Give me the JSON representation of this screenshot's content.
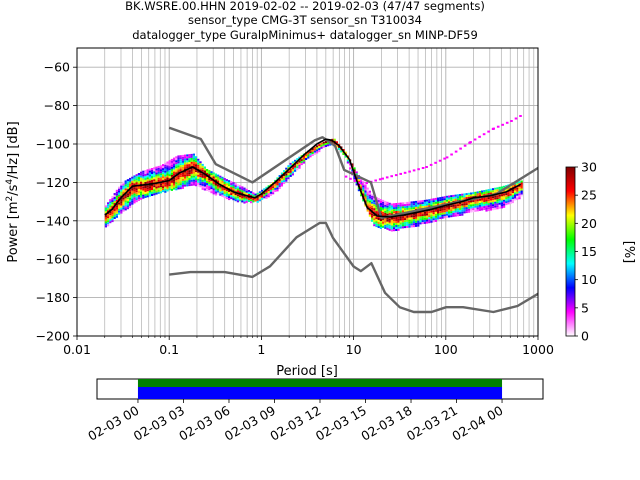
{
  "chart_data": {
    "type": "heatmap",
    "title_lines": [
      "BK.WSRE.00.HHN   2019-02-02 -- 2019-02-03  (47/47 segments)",
      "sensor_type CMG-3T sensor_sn T310034",
      "datalogger_type GuralpMinimus+ datalogger_sn MINP-DF59"
    ],
    "xlabel": "Period [s]",
    "ylabel_parts": {
      "pre": "Power [m",
      "sup1": "2",
      "mid": "/s",
      "sup2": "4",
      "post": "/Hz] [dB]"
    },
    "x_scale": "log",
    "xlim": [
      0.01,
      1000
    ],
    "ylim": [
      -200,
      -50
    ],
    "x_ticks": [
      {
        "value": 0.01,
        "label": "0.01"
      },
      {
        "value": 0.1,
        "label": "0.1"
      },
      {
        "value": 1,
        "label": "1"
      },
      {
        "value": 10,
        "label": "10"
      },
      {
        "value": 100,
        "label": "100"
      },
      {
        "value": 1000,
        "label": "1000"
      }
    ],
    "y_ticks": [
      {
        "value": -60,
        "label": "−60"
      },
      {
        "value": -80,
        "label": "−80"
      },
      {
        "value": -100,
        "label": "−100"
      },
      {
        "value": -120,
        "label": "−120"
      },
      {
        "value": -140,
        "label": "−140"
      },
      {
        "value": -160,
        "label": "−160"
      },
      {
        "value": -180,
        "label": "−180"
      },
      {
        "value": -200,
        "label": "−200"
      }
    ],
    "grid": true,
    "nhnm": {
      "period": [
        0.1,
        0.22,
        0.32,
        0.8,
        3.8,
        4.6,
        6.3,
        7.9,
        15.4,
        20,
        354.8,
        1000
      ],
      "power": [
        -91.5,
        -97.4,
        -110.5,
        -120,
        -98,
        -96.5,
        -101,
        -113.5,
        -120,
        -138.5,
        -126,
        -112.5
      ]
    },
    "nlnm": {
      "period": [
        0.1,
        0.17,
        0.4,
        0.8,
        1.24,
        2.4,
        4.3,
        5,
        6,
        10,
        12,
        15.6,
        21.9,
        31.6,
        45,
        70,
        101,
        154,
        328,
        600,
        1000
      ],
      "power": [
        -168,
        -166.7,
        -166.7,
        -169.2,
        -163.7,
        -148.6,
        -141.1,
        -141.1,
        -149,
        -163.8,
        -166.2,
        -162.1,
        -177.5,
        -185,
        -187.5,
        -187.5,
        -185,
        -185,
        -187.5,
        -184.4,
        -178
      ]
    },
    "mode_curve": {
      "period": [
        0.02,
        0.024,
        0.03,
        0.04,
        0.06,
        0.08,
        0.1,
        0.13,
        0.18,
        0.25,
        0.35,
        0.5,
        0.7,
        0.85,
        1,
        1.4,
        2,
        3,
        4,
        5,
        5.8,
        7,
        9,
        11,
        14,
        18,
        25,
        35,
        50,
        70,
        100,
        150,
        200,
        300,
        450,
        650
      ],
      "power": [
        -137,
        -134,
        -128,
        -122,
        -121,
        -120,
        -119,
        -115,
        -112,
        -116,
        -121,
        -125,
        -127,
        -128,
        -126,
        -120,
        -113,
        -105,
        -100,
        -97.5,
        -98,
        -101,
        -108,
        -120,
        -133,
        -137.5,
        -138,
        -137,
        -135.5,
        -134,
        -132,
        -130,
        -128,
        -127,
        -125,
        -121
      ]
    },
    "scatter_band": {
      "period": [
        0.02,
        0.03,
        0.05,
        0.08,
        0.12,
        0.18,
        0.25,
        0.4,
        0.6,
        0.85,
        1.3,
        2,
        3,
        4.5,
        6,
        8,
        11,
        16,
        25,
        40,
        60,
        100,
        200,
        400,
        650
      ],
      "upper": [
        -132,
        -120,
        -114,
        -111,
        -106,
        -105,
        -113,
        -118,
        -122,
        -126,
        -120,
        -110,
        -104,
        -99,
        -97,
        -104,
        -116,
        -127,
        -131,
        -130,
        -129,
        -127,
        -125,
        -122,
        -119
      ],
      "lower": [
        -143,
        -135,
        -128,
        -125,
        -123,
        -121,
        -124,
        -128,
        -130,
        -130,
        -126,
        -117,
        -108,
        -102,
        -100,
        -107,
        -124,
        -142,
        -145,
        -143,
        -141,
        -138,
        -135,
        -133,
        -127
      ]
    },
    "outlier_line": {
      "period": [
        8,
        12,
        20,
        35,
        60,
        100,
        180,
        320,
        500,
        650
      ],
      "power": [
        -117,
        -121,
        -118,
        -115,
        -112,
        -107,
        -99,
        -92,
        -88,
        -85
      ]
    },
    "colorbar": {
      "label": "[%]",
      "min": 0,
      "max": 30,
      "ticks": [
        {
          "value": 0,
          "label": "0"
        },
        {
          "value": 5,
          "label": "5"
        },
        {
          "value": 10,
          "label": "10"
        },
        {
          "value": 15,
          "label": "15"
        },
        {
          "value": 20,
          "label": "20"
        },
        {
          "value": 25,
          "label": "25"
        },
        {
          "value": 30,
          "label": "30"
        }
      ],
      "colors": [
        "#ffffff",
        "#ff00ff",
        "#0000ff",
        "#00ffff",
        "#00ff00",
        "#ffff00",
        "#ff0000",
        "#800000"
      ]
    },
    "timeline": {
      "tick_labels": [
        "02-03 00",
        "02-03 03",
        "02-03 06",
        "02-03 09",
        "02-03 12",
        "02-03 15",
        "02-03 18",
        "02-03 21",
        "02-04 00"
      ],
      "span_hours": [
        -2.7,
        26.7
      ],
      "coverage_hours": [
        0,
        24
      ],
      "bar_colors": [
        "#008000",
        "#0000ff"
      ]
    }
  }
}
